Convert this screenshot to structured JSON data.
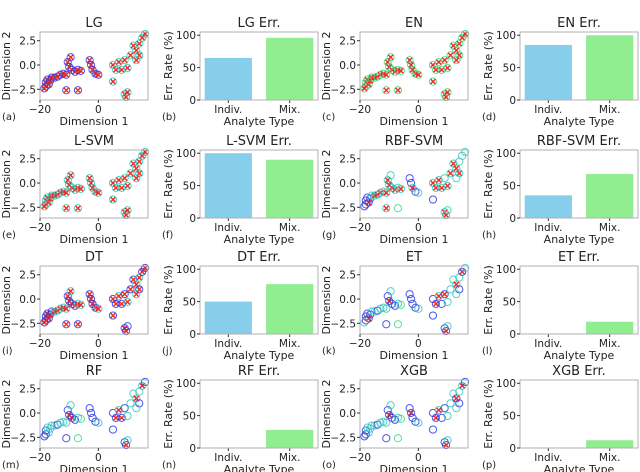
{
  "colors": {
    "blue_marker": "#2b3be6",
    "cyan_marker": "#36c9bd",
    "green_marker": "#3fdc86",
    "error_x": "#ee2a22",
    "bar_indiv": "#87ceeb",
    "bar_mix": "#90ee90",
    "frame": "#b0b0b0"
  },
  "chart_data": {
    "scatter_common": {
      "type": "scatter",
      "xlabel": "Dimension 1",
      "ylabel": "Dimension 2",
      "xlim": [
        -20,
        17
      ],
      "ylim": [
        -3.6,
        3.4
      ],
      "xticks": [
        "−20",
        "0"
      ],
      "xtick_values": [
        -20,
        0
      ],
      "yticks": [
        "−2.5",
        "0.0",
        "2.5"
      ],
      "ytick_values": [
        -2.5,
        0,
        2.5
      ],
      "marker_legend": {
        "b": "blue circle",
        "c": "cyan circle",
        "g": "green circle",
        "B": "blue circle + red x",
        "C": "cyan circle + red x",
        "G": "green circle + red x"
      },
      "points": [
        [
          -18,
          -1.8
        ],
        [
          -18,
          -2.2
        ],
        [
          -17.5,
          -1.5
        ],
        [
          -17,
          -2
        ],
        [
          -16.5,
          -1.6
        ],
        [
          -18.5,
          -2.4
        ],
        [
          -16,
          -1.3
        ],
        [
          -15,
          -1.3
        ],
        [
          -14,
          -1.2
        ],
        [
          -13,
          -1
        ],
        [
          -12,
          -0.9
        ],
        [
          -11,
          -1
        ],
        [
          -10.5,
          0.3
        ],
        [
          -10,
          -0.2
        ],
        [
          -9.5,
          0.8
        ],
        [
          -9,
          -0.5
        ],
        [
          -8,
          -0.7
        ],
        [
          -7,
          -0.5
        ],
        [
          -6,
          -0.6
        ],
        [
          -11,
          -2.6
        ],
        [
          -7,
          -2.6
        ],
        [
          -3,
          0.5
        ],
        [
          -2.5,
          0
        ],
        [
          -2,
          -0.5
        ],
        [
          -1,
          -0.9
        ],
        [
          0,
          -1
        ],
        [
          5,
          -1.7
        ],
        [
          5,
          0
        ],
        [
          6,
          -0.5
        ],
        [
          7,
          0.3
        ],
        [
          8,
          -0.5
        ],
        [
          9,
          0.5
        ],
        [
          10,
          -0.3
        ],
        [
          11,
          1
        ],
        [
          12,
          2
        ],
        [
          13,
          1.5
        ],
        [
          14,
          2.2
        ],
        [
          15,
          2.8
        ],
        [
          16,
          3.2
        ],
        [
          9,
          -3
        ],
        [
          9.5,
          -3.3
        ],
        [
          10,
          -2.8
        ],
        [
          14,
          1
        ],
        [
          13,
          0.5
        ]
      ]
    },
    "bar_common": {
      "type": "bar",
      "xlabel": "Analyte Type",
      "ylabel": "Err. Rate (%)",
      "categories": [
        "Indiv.",
        "Mix."
      ],
      "ylim": [
        0,
        105
      ],
      "yticks": [
        "0",
        "50",
        "100"
      ],
      "ytick_values": [
        0,
        50,
        100
      ]
    },
    "panels": [
      {
        "id": "a",
        "title": "LG",
        "markers": "BBBBBBBBBBBBBBBBBBBBBBBBBBCCCCCCCCCCCCCCCCCC"
      },
      {
        "id": "b",
        "title": "LG Err.",
        "values": [
          65,
          96
        ]
      },
      {
        "id": "c",
        "title": "EN",
        "markers": "GGGGGGGGGGGGGGGGGGGGGGGGGGGGGGGGGGGGGGGGGGGG"
      },
      {
        "id": "d",
        "title": "EN Err.",
        "values": [
          85,
          100
        ]
      },
      {
        "id": "e",
        "title": "L-SVM",
        "markers": "CCCCCCCCCCCCCCCCCCCCCCCCCCCCCCCCCCCCCCCCCCCC"
      },
      {
        "id": "f",
        "title": "L-SVM Err.",
        "values": [
          100,
          90
        ]
      },
      {
        "id": "g",
        "title": "RBF-SVM",
        "markers": "bbbBbbcCCCcCCCcCCcCCgbbCbcbCCCCcCCCCcccCCcCc"
      },
      {
        "id": "h",
        "title": "RBF-SVM Err.",
        "values": [
          35,
          68
        ]
      },
      {
        "id": "i",
        "title": "DT",
        "markers": "BBBBBBbCCCCCBBCBBCCBBBBBBCBBBCBBCBBCCBBBBbBC"
      },
      {
        "id": "j",
        "title": "DT Err.",
        "values": [
          50,
          77
        ]
      },
      {
        "id": "k",
        "title": "ET",
        "markers": "bbbBbcccbcccbBcbbcgbgbbbbcbbBCbBcccCcBcbBcbc"
      },
      {
        "id": "l",
        "title": "ET Err.",
        "values": [
          0,
          19
        ]
      },
      {
        "id": "m",
        "title": "RF",
        "markers": "bbcccbccbcccbBcBbcgbgbbbbcbbBCBbcccCcCbbBcbc"
      },
      {
        "id": "n",
        "title": "RF Err.",
        "values": [
          0,
          28
        ]
      },
      {
        "id": "o",
        "title": "XGB",
        "markers": "bbcccbccbcccbBcbbcgbgbBbbcbbBCbbcccBcCbbBcbc"
      },
      {
        "id": "p",
        "title": "XGB Err.",
        "values": [
          0,
          12
        ]
      }
    ]
  }
}
